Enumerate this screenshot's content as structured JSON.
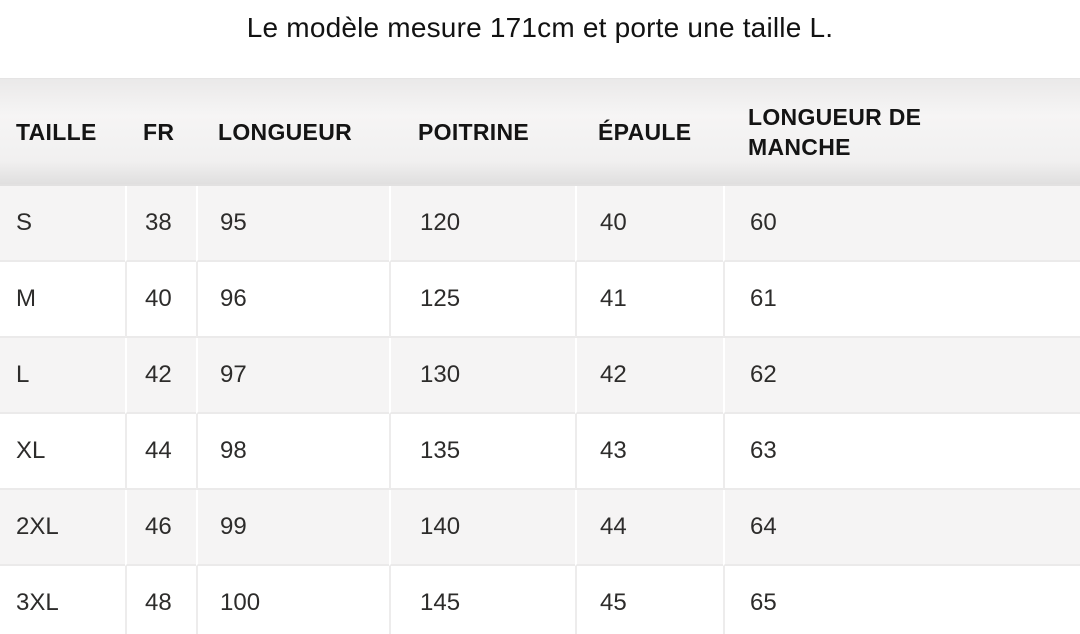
{
  "note": "Le modèle mesure 171cm et porte une taille L.",
  "table": {
    "columns": [
      "TAILLE",
      "FR",
      "LONGUEUR",
      "POITRINE",
      "ÉPAULE",
      "LONGUEUR DE MANCHE"
    ],
    "rows": [
      [
        "S",
        "38",
        "95",
        "120",
        "40",
        "60"
      ],
      [
        "M",
        "40",
        "96",
        "125",
        "41",
        "61"
      ],
      [
        "L",
        "42",
        "97",
        "130",
        "42",
        "62"
      ],
      [
        "XL",
        "44",
        "98",
        "135",
        "43",
        "63"
      ],
      [
        "2XL",
        "46",
        "99",
        "140",
        "44",
        "64"
      ],
      [
        "3XL",
        "48",
        "100",
        "145",
        "45",
        "65"
      ]
    ]
  },
  "colors": {
    "striped_row_bg": "#f5f4f4",
    "plain_row_bg": "#ffffff",
    "header_gradient_top": "#eae9e9",
    "header_gradient_bottom": "#e0dfdf",
    "row_divider": "#ebeaea",
    "separator_on_striped": "#ffffff",
    "separator_on_plain": "#edecec",
    "text": "#2d2c2b",
    "heading_text": "#141414"
  }
}
